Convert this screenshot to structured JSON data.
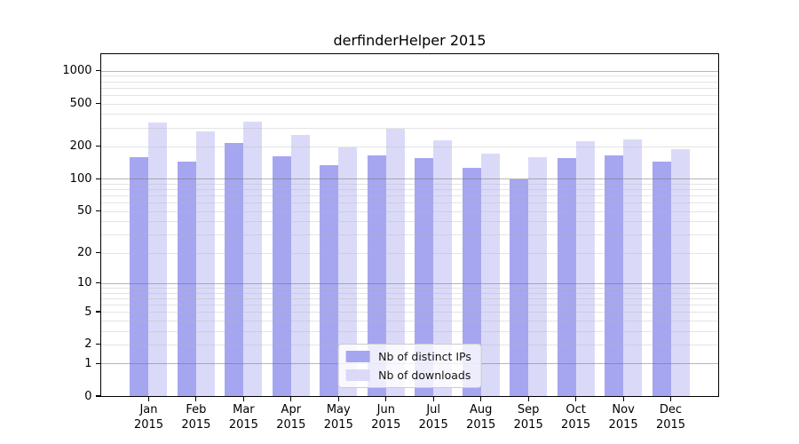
{
  "chart_data": {
    "type": "bar",
    "title": "derfinderHelper 2015",
    "categories": [
      "Jan",
      "Feb",
      "Mar",
      "Apr",
      "May",
      "Jun",
      "Jul",
      "Aug",
      "Sep",
      "Oct",
      "Nov",
      "Dec"
    ],
    "category_year": "2015",
    "series": [
      {
        "name": "Nb of distinct IPs",
        "color": "#a6a6f0",
        "values": [
          158,
          145,
          214,
          161,
          135,
          164,
          157,
          126,
          98,
          157,
          164,
          144
        ]
      },
      {
        "name": "Nb of downloads",
        "color": "#dadaf8",
        "values": [
          330,
          274,
          338,
          254,
          197,
          289,
          226,
          170,
          158,
          225,
          234,
          190
        ]
      }
    ],
    "y_scale": "log10(1+y)",
    "y_ticks": [
      0,
      1,
      2,
      5,
      10,
      20,
      50,
      100,
      200,
      500,
      1000
    ],
    "y_major_gridlines": [
      1,
      10,
      100,
      1000
    ],
    "ylim": [
      0,
      1425
    ],
    "x_slots": 13,
    "grid": true,
    "legend_position": "lower center"
  },
  "colors": {
    "spine": "#000000",
    "background": "#ffffff",
    "legend_border": "#cccccc"
  }
}
